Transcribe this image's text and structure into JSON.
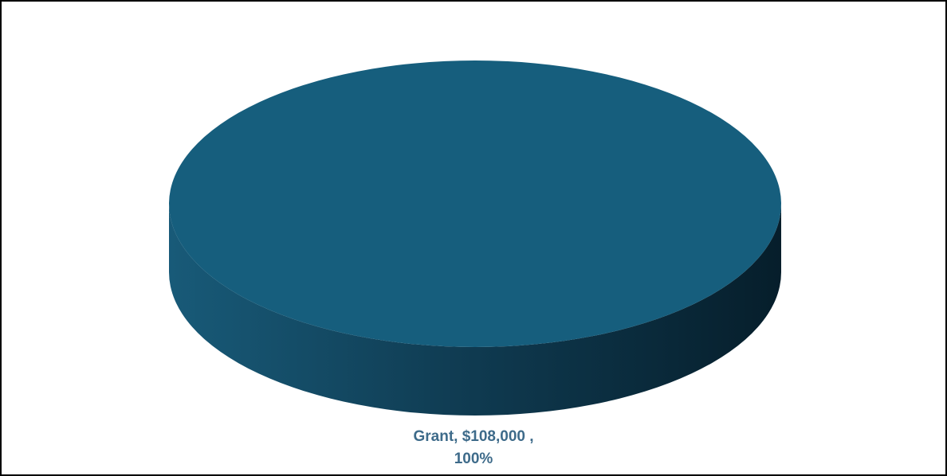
{
  "chart_data": {
    "type": "pie",
    "style": "3d",
    "slices": [
      {
        "name": "Grant",
        "value": 108000,
        "percent": 100,
        "color": "#165E7D",
        "label_line1": "Grant, $108,000 ,",
        "label_line2": "100%"
      }
    ],
    "label_color": "#3E6B8A",
    "legend": "none"
  }
}
